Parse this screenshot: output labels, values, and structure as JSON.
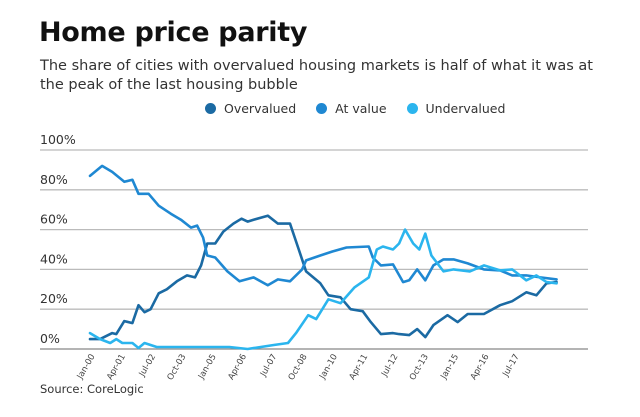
{
  "chart_data": {
    "type": "line",
    "title": "Home price parity",
    "subtitle": "The share of cities with overvalued housing markets is half of what it was at the peak of the last housing bubble",
    "source": "Source: CoreLogic",
    "ylim": [
      0,
      100
    ],
    "yticks": [
      "0%",
      "20%",
      "40%",
      "60%",
      "80%",
      "100%"
    ],
    "xticks": [
      "Jan-00",
      "Apr-01",
      "Jul-02",
      "Oct-03",
      "Jan-05",
      "Apr-06",
      "Jul-07",
      "Oct-08",
      "Jan-10",
      "Apr-11",
      "Jul-12",
      "Oct-13",
      "Jan-15",
      "Apr-16",
      "Jul-17"
    ],
    "grid": true,
    "legend_position": "top-right",
    "series": [
      {
        "name": "Overvalued",
        "color": "#1b6aa3",
        "points": [
          [
            "2000-01",
            5
          ],
          [
            "2000-06",
            5
          ],
          [
            "2000-12",
            8
          ],
          [
            "2001-02",
            7.5
          ],
          [
            "2001-06",
            14
          ],
          [
            "2001-10",
            13
          ],
          [
            "2002-01",
            22
          ],
          [
            "2002-04",
            18.5
          ],
          [
            "2002-07",
            20
          ],
          [
            "2002-11",
            28
          ],
          [
            "2003-03",
            30
          ],
          [
            "2003-08",
            34
          ],
          [
            "2004-01",
            37
          ],
          [
            "2004-05",
            36
          ],
          [
            "2004-08",
            42
          ],
          [
            "2004-11",
            53
          ],
          [
            "2005-03",
            53
          ],
          [
            "2005-07",
            59
          ],
          [
            "2005-12",
            63
          ],
          [
            "2006-04",
            65.5
          ],
          [
            "2006-07",
            64
          ],
          [
            "2006-10",
            65
          ],
          [
            "2007-05",
            67
          ],
          [
            "2007-10",
            63
          ],
          [
            "2008-04",
            63
          ],
          [
            "2008-08",
            51
          ],
          [
            "2008-12",
            39
          ],
          [
            "2009-07",
            33
          ],
          [
            "2009-11",
            27
          ],
          [
            "2010-05",
            26
          ],
          [
            "2010-10",
            20
          ],
          [
            "2011-04",
            19
          ],
          [
            "2011-08",
            13.5
          ],
          [
            "2012-01",
            7.5
          ],
          [
            "2012-07",
            8
          ],
          [
            "2012-10",
            7.5
          ],
          [
            "2013-03",
            7
          ],
          [
            "2013-07",
            10
          ],
          [
            "2013-11",
            6
          ],
          [
            "2014-03",
            12
          ],
          [
            "2014-10",
            17
          ],
          [
            "2015-03",
            13.5
          ],
          [
            "2015-08",
            17.6
          ],
          [
            "2016-04",
            17.6
          ],
          [
            "2016-12",
            22
          ],
          [
            "2017-06",
            24
          ],
          [
            "2018-01",
            28.5
          ],
          [
            "2018-06",
            27
          ],
          [
            "2018-11",
            33
          ],
          [
            "2019-04",
            33.6
          ]
        ]
      },
      {
        "name": "At value",
        "color": "#1f88d2",
        "points": [
          [
            "2000-01",
            87
          ],
          [
            "2000-07",
            92
          ],
          [
            "2000-12",
            89
          ],
          [
            "2001-06",
            84
          ],
          [
            "2001-10",
            85
          ],
          [
            "2002-01",
            78
          ],
          [
            "2002-06",
            78
          ],
          [
            "2002-11",
            72
          ],
          [
            "2003-05",
            68
          ],
          [
            "2003-10",
            65
          ],
          [
            "2004-03",
            61
          ],
          [
            "2004-06",
            62
          ],
          [
            "2004-09",
            56
          ],
          [
            "2004-11",
            47
          ],
          [
            "2005-03",
            46
          ],
          [
            "2005-09",
            39
          ],
          [
            "2006-03",
            34
          ],
          [
            "2006-10",
            36
          ],
          [
            "2007-05",
            32
          ],
          [
            "2007-10",
            35
          ],
          [
            "2008-04",
            34
          ],
          [
            "2008-10",
            40
          ],
          [
            "2008-12",
            44.5
          ],
          [
            "2009-07",
            47
          ],
          [
            "2010-01",
            49
          ],
          [
            "2010-08",
            51
          ],
          [
            "2011-07",
            51.5
          ],
          [
            "2011-09",
            46
          ],
          [
            "2012-01",
            42
          ],
          [
            "2012-07",
            42.5
          ],
          [
            "2012-12",
            33.6
          ],
          [
            "2013-03",
            34.5
          ],
          [
            "2013-07",
            40
          ],
          [
            "2013-11",
            34.5
          ],
          [
            "2014-03",
            42
          ],
          [
            "2014-08",
            45
          ],
          [
            "2015-01",
            45
          ],
          [
            "2015-08",
            43
          ],
          [
            "2016-04",
            40
          ],
          [
            "2016-12",
            39.5
          ],
          [
            "2017-06",
            37
          ],
          [
            "2018-01",
            37
          ],
          [
            "2018-08",
            36
          ],
          [
            "2019-04",
            35
          ]
        ]
      },
      {
        "name": "Undervalued",
        "color": "#2bb5ee",
        "points": [
          [
            "2000-01",
            8
          ],
          [
            "2000-06",
            5
          ],
          [
            "2000-11",
            3
          ],
          [
            "2001-02",
            5
          ],
          [
            "2001-05",
            3
          ],
          [
            "2001-10",
            3
          ],
          [
            "2002-01",
            0.5
          ],
          [
            "2002-04",
            3
          ],
          [
            "2002-10",
            1
          ],
          [
            "2003-10",
            1
          ],
          [
            "2004-06",
            1
          ],
          [
            "2005-10",
            1
          ],
          [
            "2006-07",
            0
          ],
          [
            "2007-08",
            2
          ],
          [
            "2008-03",
            3
          ],
          [
            "2008-07",
            8
          ],
          [
            "2009-01",
            17
          ],
          [
            "2009-05",
            15
          ],
          [
            "2009-11",
            25
          ],
          [
            "2010-05",
            23
          ],
          [
            "2010-12",
            31
          ],
          [
            "2011-07",
            36
          ],
          [
            "2011-11",
            50
          ],
          [
            "2012-02",
            51.5
          ],
          [
            "2012-07",
            50
          ],
          [
            "2012-10",
            53
          ],
          [
            "2013-01",
            60
          ],
          [
            "2013-05",
            53
          ],
          [
            "2013-08",
            50
          ],
          [
            "2013-11",
            58
          ],
          [
            "2014-02",
            47
          ],
          [
            "2014-08",
            39
          ],
          [
            "2015-01",
            40
          ],
          [
            "2015-09",
            39
          ],
          [
            "2016-04",
            42
          ],
          [
            "2016-12",
            39.5
          ],
          [
            "2017-06",
            40
          ],
          [
            "2018-01",
            34.5
          ],
          [
            "2018-06",
            37
          ],
          [
            "2018-11",
            33.6
          ],
          [
            "2019-04",
            33
          ]
        ]
      }
    ]
  }
}
